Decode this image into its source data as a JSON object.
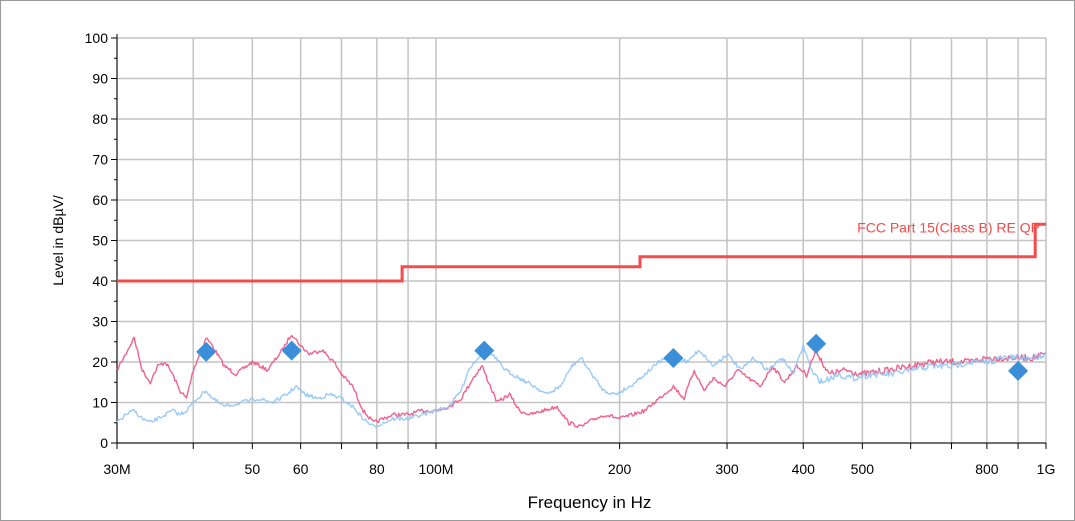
{
  "chart_data": {
    "type": "line",
    "title": "",
    "xlabel": "Frequency in Hz",
    "ylabel": "Level in dBµV/",
    "xscale": "log",
    "xlim": [
      30000000,
      1000000000
    ],
    "ylim": [
      0,
      100
    ],
    "grid": true,
    "x_tick_labels": [
      {
        "value": 30000000,
        "label": "30M"
      },
      {
        "value": 50000000,
        "label": "50"
      },
      {
        "value": 60000000,
        "label": "60"
      },
      {
        "value": 80000000,
        "label": "80"
      },
      {
        "value": 100000000,
        "label": "100M"
      },
      {
        "value": 200000000,
        "label": "200"
      },
      {
        "value": 300000000,
        "label": "300"
      },
      {
        "value": 400000000,
        "label": "400"
      },
      {
        "value": 500000000,
        "label": "500"
      },
      {
        "value": 800000000,
        "label": "800"
      },
      {
        "value": 1000000000,
        "label": "1G"
      }
    ],
    "x_minor_ticks": [
      40000000,
      70000000,
      90000000,
      600000000,
      700000000,
      900000000
    ],
    "y_ticks": [
      0,
      10,
      20,
      30,
      40,
      50,
      60,
      70,
      80,
      90,
      100
    ],
    "limit_line": {
      "name": "FCC Part 15(Class B) RE QP",
      "color": "#f44b4b",
      "points": [
        [
          30000000,
          40
        ],
        [
          88000000,
          40
        ],
        [
          88000000,
          43.5
        ],
        [
          216000000,
          43.5
        ],
        [
          216000000,
          46
        ],
        [
          960000000,
          46
        ],
        [
          960000000,
          54
        ],
        [
          1000000000,
          54
        ]
      ]
    },
    "series": [
      {
        "color": "#f05a87",
        "points": [
          [
            30000000,
            18
          ],
          [
            31000000,
            22
          ],
          [
            32000000,
            26
          ],
          [
            33000000,
            18
          ],
          [
            34000000,
            15
          ],
          [
            35000000,
            19
          ],
          [
            36000000,
            20
          ],
          [
            37000000,
            17
          ],
          [
            38000000,
            13
          ],
          [
            39000000,
            11
          ],
          [
            40000000,
            18
          ],
          [
            41000000,
            22
          ],
          [
            42000000,
            26
          ],
          [
            43000000,
            24
          ],
          [
            45000000,
            19
          ],
          [
            47000000,
            17
          ],
          [
            50000000,
            20
          ],
          [
            53000000,
            18
          ],
          [
            56000000,
            23
          ],
          [
            58000000,
            27
          ],
          [
            60000000,
            24
          ],
          [
            62000000,
            22
          ],
          [
            65000000,
            23
          ],
          [
            68000000,
            20
          ],
          [
            70000000,
            17
          ],
          [
            73000000,
            14
          ],
          [
            76000000,
            8
          ],
          [
            79000000,
            5
          ],
          [
            82000000,
            6
          ],
          [
            85000000,
            7
          ],
          [
            90000000,
            7
          ],
          [
            95000000,
            8
          ],
          [
            100000000,
            8
          ],
          [
            105000000,
            9
          ],
          [
            110000000,
            11
          ],
          [
            115000000,
            16
          ],
          [
            119000000,
            19
          ],
          [
            122000000,
            15
          ],
          [
            126000000,
            10
          ],
          [
            132000000,
            12
          ],
          [
            137000000,
            8
          ],
          [
            143000000,
            7
          ],
          [
            150000000,
            8
          ],
          [
            158000000,
            9
          ],
          [
            165000000,
            5
          ],
          [
            173000000,
            4
          ],
          [
            182000000,
            6
          ],
          [
            190000000,
            7
          ],
          [
            200000000,
            6
          ],
          [
            210000000,
            7
          ],
          [
            220000000,
            8
          ],
          [
            232000000,
            11
          ],
          [
            245000000,
            14
          ],
          [
            255000000,
            11
          ],
          [
            265000000,
            18
          ],
          [
            275000000,
            13
          ],
          [
            285000000,
            16
          ],
          [
            298000000,
            14
          ],
          [
            312000000,
            18
          ],
          [
            325000000,
            16
          ],
          [
            340000000,
            14
          ],
          [
            356000000,
            19
          ],
          [
            373000000,
            15
          ],
          [
            390000000,
            19
          ],
          [
            405000000,
            17
          ],
          [
            420000000,
            23
          ],
          [
            440000000,
            17
          ],
          [
            470000000,
            18
          ],
          [
            500000000,
            17
          ],
          [
            550000000,
            18
          ],
          [
            600000000,
            19
          ],
          [
            650000000,
            20
          ],
          [
            700000000,
            20
          ],
          [
            750000000,
            20
          ],
          [
            800000000,
            21
          ],
          [
            850000000,
            21
          ],
          [
            900000000,
            21
          ],
          [
            950000000,
            21
          ],
          [
            1000000000,
            22
          ]
        ]
      },
      {
        "color": "#90c5f5",
        "points": [
          [
            30000000,
            5
          ],
          [
            31000000,
            7
          ],
          [
            32000000,
            8
          ],
          [
            33000000,
            6
          ],
          [
            34000000,
            5
          ],
          [
            35000000,
            6
          ],
          [
            36000000,
            7
          ],
          [
            37000000,
            8
          ],
          [
            38000000,
            7
          ],
          [
            39000000,
            8
          ],
          [
            40000000,
            10
          ],
          [
            42000000,
            13
          ],
          [
            43000000,
            11
          ],
          [
            45000000,
            9
          ],
          [
            48000000,
            10
          ],
          [
            51000000,
            11
          ],
          [
            54000000,
            10
          ],
          [
            57000000,
            12
          ],
          [
            59000000,
            14
          ],
          [
            61000000,
            12
          ],
          [
            64000000,
            11
          ],
          [
            67000000,
            12
          ],
          [
            70000000,
            11
          ],
          [
            73000000,
            9
          ],
          [
            76000000,
            6
          ],
          [
            79000000,
            4
          ],
          [
            82000000,
            5
          ],
          [
            85000000,
            6
          ],
          [
            90000000,
            6
          ],
          [
            95000000,
            7
          ],
          [
            100000000,
            8
          ],
          [
            105000000,
            9
          ],
          [
            110000000,
            13
          ],
          [
            113000000,
            18
          ],
          [
            117000000,
            21
          ],
          [
            121000000,
            23
          ],
          [
            125000000,
            21
          ],
          [
            130000000,
            18
          ],
          [
            137000000,
            16
          ],
          [
            145000000,
            14
          ],
          [
            152000000,
            12
          ],
          [
            160000000,
            14
          ],
          [
            167000000,
            19
          ],
          [
            173000000,
            21
          ],
          [
            180000000,
            17
          ],
          [
            188000000,
            13
          ],
          [
            197000000,
            12
          ],
          [
            208000000,
            14
          ],
          [
            220000000,
            17
          ],
          [
            232000000,
            20
          ],
          [
            245000000,
            22
          ],
          [
            258000000,
            20
          ],
          [
            270000000,
            23
          ],
          [
            285000000,
            19
          ],
          [
            300000000,
            22
          ],
          [
            316000000,
            18
          ],
          [
            332000000,
            21
          ],
          [
            350000000,
            18
          ],
          [
            370000000,
            21
          ],
          [
            385000000,
            17
          ],
          [
            400000000,
            24
          ],
          [
            415000000,
            17
          ],
          [
            430000000,
            15
          ],
          [
            455000000,
            17
          ],
          [
            480000000,
            16
          ],
          [
            520000000,
            17
          ],
          [
            560000000,
            17
          ],
          [
            600000000,
            18
          ],
          [
            650000000,
            19
          ],
          [
            700000000,
            19
          ],
          [
            750000000,
            20
          ],
          [
            800000000,
            20
          ],
          [
            850000000,
            21
          ],
          [
            900000000,
            21
          ],
          [
            950000000,
            21
          ],
          [
            1000000000,
            22
          ]
        ]
      }
    ],
    "markers": {
      "color": "#3a8fd8",
      "points": [
        [
          42000000,
          22.5
        ],
        [
          58000000,
          22.8
        ],
        [
          120000000,
          22.8
        ],
        [
          245000000,
          21
        ],
        [
          420000000,
          24.5
        ],
        [
          900000000,
          17.8
        ]
      ]
    }
  }
}
